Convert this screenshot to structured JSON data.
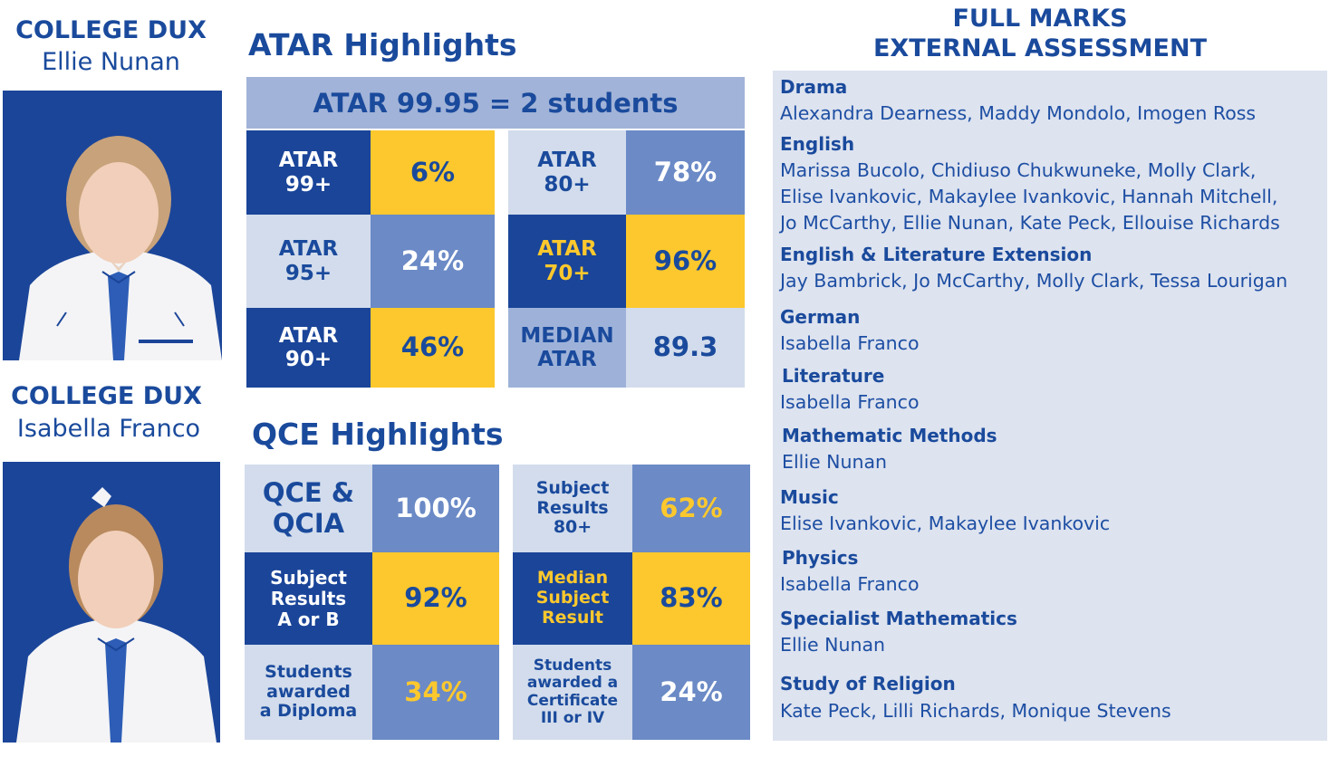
{
  "dux": [
    {
      "heading": "COLLEGE DUX",
      "name": "Ellie Nunan",
      "photo": "student-portrait-1"
    },
    {
      "heading": "COLLEGE DUX",
      "name": "Isabella Franco",
      "photo": "student-portrait-2"
    }
  ],
  "atar": {
    "title": "ATAR Highlights",
    "banner": "ATAR 99.95 = 2 students",
    "left": [
      {
        "label": [
          "ATAR",
          "99+"
        ],
        "value": "6%"
      },
      {
        "label": [
          "ATAR",
          "95+"
        ],
        "value": "24%"
      },
      {
        "label": [
          "ATAR",
          "90+"
        ],
        "value": "46%"
      }
    ],
    "right": [
      {
        "label": [
          "ATAR",
          "80+"
        ],
        "value": "78%"
      },
      {
        "label": [
          "ATAR",
          "70+"
        ],
        "value": "96%"
      },
      {
        "label": [
          "MEDIAN",
          "ATAR"
        ],
        "value": "89.3"
      }
    ]
  },
  "qce": {
    "title": "QCE Highlights",
    "left": [
      {
        "label": [
          "QCE &",
          "QCIA"
        ],
        "value": "100%"
      },
      {
        "label": [
          "Subject",
          "Results",
          "A or B"
        ],
        "value": "92%"
      },
      {
        "label": [
          "Students",
          "awarded",
          "a Diploma"
        ],
        "value": "34%"
      }
    ],
    "right": [
      {
        "label": [
          "Subject",
          "Results",
          "80+"
        ],
        "value": "62%"
      },
      {
        "label": [
          "Median",
          "Subject",
          "Result"
        ],
        "value": "83%"
      },
      {
        "label": [
          "Students",
          "awarded a",
          "Certificate",
          "III or IV"
        ],
        "value": "24%"
      }
    ]
  },
  "full_marks": {
    "title": [
      "FULL MARKS",
      "EXTERNAL ASSESSMENT"
    ],
    "subjects": [
      {
        "subject": "Drama",
        "names": [
          "Alexandra Dearness, Maddy Mondolo, Imogen Ross"
        ]
      },
      {
        "subject": "English",
        "names": [
          "Marissa Bucolo, Chidiuso Chukwuneke, Molly Clark,",
          "Elise Ivankovic, Makaylee Ivankovic, Hannah Mitchell,",
          "Jo McCarthy, Ellie Nunan, Kate Peck, Ellouise Richards"
        ]
      },
      {
        "subject": "English & Literature Extension",
        "names": [
          "Jay Bambrick, Jo McCarthy, Molly Clark, Tessa Lourigan"
        ]
      },
      {
        "subject": "German",
        "names": [
          "Isabella Franco"
        ]
      },
      {
        "subject": "Literature",
        "names": [
          "Isabella Franco"
        ]
      },
      {
        "subject": "Mathematic Methods",
        "names": [
          "Ellie Nunan"
        ]
      },
      {
        "subject": "Music",
        "names": [
          "Elise Ivankovic, Makaylee Ivankovic"
        ]
      },
      {
        "subject": "Physics",
        "names": [
          "Isabella Franco"
        ]
      },
      {
        "subject": "Specialist Mathematics",
        "names": [
          "Ellie Nunan"
        ]
      },
      {
        "subject": "Study of Religion",
        "names": [
          "Kate Peck, Lilli Richards, Monique Stevens"
        ]
      }
    ]
  },
  "colors": {
    "navy": "#1a4599",
    "gold": "#fcc82d",
    "light": "#d2dcec",
    "mid": "#6b8ac6",
    "panel": "#dde3ef"
  }
}
